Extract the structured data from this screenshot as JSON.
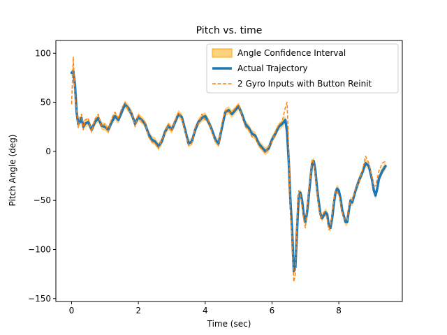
{
  "chart_data": {
    "type": "line",
    "title": "Pitch vs. time",
    "xlabel": "Time (sec)",
    "ylabel": "Pitch Angle (deg)",
    "xlim": [
      -0.47,
      9.9
    ],
    "ylim": [
      -153,
      113
    ],
    "xticks": [
      0,
      2,
      4,
      6,
      8
    ],
    "yticks": [
      -150,
      -100,
      -50,
      0,
      50,
      100
    ],
    "grid": false,
    "legend_position": "top-right",
    "series": [
      {
        "name": "Angle Confidence Interval",
        "kind": "band",
        "color": "#ffa500",
        "half_width": 4,
        "x": [
          0,
          0.05,
          0.1,
          0.15,
          0.2,
          0.25,
          0.3,
          0.35,
          0.4,
          0.5,
          0.6,
          0.7,
          0.8,
          0.9,
          1.0,
          1.1,
          1.2,
          1.3,
          1.4,
          1.5,
          1.6,
          1.7,
          1.8,
          1.9,
          2.0,
          2.1,
          2.2,
          2.3,
          2.4,
          2.5,
          2.6,
          2.7,
          2.8,
          2.9,
          3.0,
          3.1,
          3.2,
          3.3,
          3.4,
          3.5,
          3.6,
          3.7,
          3.8,
          3.9,
          4.0,
          4.1,
          4.2,
          4.3,
          4.4,
          4.5,
          4.6,
          4.7,
          4.8,
          4.9,
          5.0,
          5.1,
          5.2,
          5.3,
          5.4,
          5.5,
          5.6,
          5.7,
          5.8,
          5.9,
          6.0,
          6.1,
          6.2,
          6.3,
          6.4,
          6.45,
          6.5,
          6.55,
          6.6,
          6.65,
          6.7,
          6.75,
          6.8,
          6.85,
          6.9,
          6.95,
          7.0,
          7.05,
          7.1,
          7.15,
          7.2,
          7.25,
          7.3,
          7.35,
          7.4,
          7.45,
          7.5,
          7.55,
          7.6,
          7.65,
          7.7,
          7.75,
          7.8,
          7.85,
          7.9,
          7.95,
          8.0,
          8.05,
          8.1,
          8.15,
          8.2,
          8.25,
          8.3,
          8.35,
          8.4,
          8.5,
          8.6,
          8.7,
          8.8,
          8.9,
          9.0,
          9.05,
          9.1,
          9.15,
          9.2,
          9.3,
          9.4
        ],
        "y": [
          80,
          82,
          68,
          40,
          28,
          30,
          34,
          25,
          28,
          30,
          22,
          30,
          34,
          26,
          25,
          22,
          30,
          36,
          32,
          40,
          48,
          44,
          38,
          28,
          35,
          32,
          28,
          18,
          12,
          10,
          5,
          10,
          20,
          26,
          22,
          30,
          38,
          35,
          22,
          8,
          10,
          22,
          30,
          34,
          36,
          30,
          22,
          12,
          8,
          24,
          40,
          42,
          38,
          42,
          46,
          38,
          28,
          24,
          18,
          16,
          8,
          4,
          0,
          3,
          12,
          18,
          25,
          28,
          32,
          20,
          -10,
          -50,
          -80,
          -122,
          -118,
          -80,
          -45,
          -42,
          -50,
          -65,
          -72,
          -62,
          -45,
          -28,
          -12,
          -10,
          -20,
          -38,
          -52,
          -64,
          -68,
          -65,
          -62,
          -64,
          -76,
          -78,
          -68,
          -54,
          -42,
          -38,
          -40,
          -48,
          -60,
          -66,
          -72,
          -72,
          -60,
          -50,
          -52,
          -40,
          -30,
          -22,
          -12,
          -15,
          -30,
          -40,
          -45,
          -38,
          -28,
          -20,
          -15
        ]
      },
      {
        "name": "Actual Trajectory",
        "kind": "line",
        "color": "#1f77b4",
        "x": [
          0,
          0.05,
          0.1,
          0.15,
          0.2,
          0.25,
          0.3,
          0.35,
          0.4,
          0.5,
          0.6,
          0.7,
          0.8,
          0.9,
          1.0,
          1.1,
          1.2,
          1.3,
          1.4,
          1.5,
          1.6,
          1.7,
          1.8,
          1.9,
          2.0,
          2.1,
          2.2,
          2.3,
          2.4,
          2.5,
          2.6,
          2.7,
          2.8,
          2.9,
          3.0,
          3.1,
          3.2,
          3.3,
          3.4,
          3.5,
          3.6,
          3.7,
          3.8,
          3.9,
          4.0,
          4.1,
          4.2,
          4.3,
          4.4,
          4.5,
          4.6,
          4.7,
          4.8,
          4.9,
          5.0,
          5.1,
          5.2,
          5.3,
          5.4,
          5.5,
          5.6,
          5.7,
          5.8,
          5.9,
          6.0,
          6.1,
          6.2,
          6.3,
          6.4,
          6.45,
          6.5,
          6.55,
          6.6,
          6.65,
          6.7,
          6.75,
          6.8,
          6.85,
          6.9,
          6.95,
          7.0,
          7.05,
          7.1,
          7.15,
          7.2,
          7.25,
          7.3,
          7.35,
          7.4,
          7.45,
          7.5,
          7.55,
          7.6,
          7.65,
          7.7,
          7.75,
          7.8,
          7.85,
          7.9,
          7.95,
          8.0,
          8.05,
          8.1,
          8.15,
          8.2,
          8.25,
          8.3,
          8.35,
          8.4,
          8.5,
          8.6,
          8.7,
          8.8,
          8.9,
          9.0,
          9.05,
          9.1,
          9.15,
          9.2,
          9.3,
          9.4
        ],
        "y": [
          80,
          82,
          68,
          40,
          28,
          30,
          34,
          25,
          28,
          30,
          22,
          30,
          34,
          26,
          25,
          22,
          30,
          36,
          32,
          40,
          48,
          44,
          38,
          28,
          35,
          32,
          28,
          18,
          12,
          10,
          5,
          10,
          20,
          26,
          22,
          30,
          38,
          35,
          22,
          8,
          10,
          22,
          30,
          34,
          36,
          30,
          22,
          12,
          8,
          24,
          40,
          42,
          38,
          42,
          46,
          38,
          28,
          24,
          18,
          16,
          8,
          4,
          0,
          3,
          12,
          18,
          25,
          28,
          32,
          20,
          -10,
          -50,
          -80,
          -122,
          -118,
          -80,
          -45,
          -42,
          -50,
          -65,
          -72,
          -62,
          -45,
          -28,
          -12,
          -10,
          -20,
          -38,
          -52,
          -64,
          -68,
          -65,
          -62,
          -64,
          -76,
          -78,
          -68,
          -54,
          -42,
          -38,
          -40,
          -48,
          -60,
          -66,
          -72,
          -72,
          -60,
          -50,
          -52,
          -40,
          -30,
          -22,
          -12,
          -15,
          -30,
          -40,
          -45,
          -38,
          -28,
          -20,
          -15
        ]
      },
      {
        "name": "2 Gyro Inputs with Button Reinit",
        "kind": "dashed",
        "color": "#ff7f0e",
        "x": [
          0,
          0.05,
          0.1,
          0.15,
          0.2,
          0.25,
          0.3,
          0.35,
          0.4,
          0.5,
          0.6,
          0.7,
          0.8,
          0.9,
          1.0,
          1.1,
          1.2,
          1.3,
          1.4,
          1.5,
          1.6,
          1.7,
          1.8,
          1.9,
          2.0,
          2.1,
          2.2,
          2.3,
          2.4,
          2.5,
          2.6,
          2.7,
          2.8,
          2.9,
          3.0,
          3.1,
          3.2,
          3.3,
          3.4,
          3.5,
          3.6,
          3.7,
          3.8,
          3.9,
          4.0,
          4.1,
          4.2,
          4.3,
          4.4,
          4.5,
          4.6,
          4.7,
          4.8,
          4.9,
          5.0,
          5.1,
          5.2,
          5.3,
          5.4,
          5.5,
          5.6,
          5.7,
          5.8,
          5.9,
          6.0,
          6.1,
          6.2,
          6.3,
          6.4,
          6.45,
          6.5,
          6.55,
          6.6,
          6.65,
          6.7,
          6.75,
          6.8,
          6.85,
          6.9,
          6.95,
          7.0,
          7.05,
          7.1,
          7.15,
          7.2,
          7.25,
          7.3,
          7.35,
          7.4,
          7.45,
          7.5,
          7.55,
          7.6,
          7.65,
          7.7,
          7.75,
          7.8,
          7.85,
          7.9,
          7.95,
          8.0,
          8.05,
          8.1,
          8.15,
          8.2,
          8.25,
          8.3,
          8.35,
          8.4,
          8.5,
          8.6,
          8.7,
          8.8,
          8.9,
          9.0,
          9.05,
          9.1,
          9.15,
          9.2,
          9.3,
          9.4
        ],
        "y": [
          48,
          96,
          58,
          42,
          24,
          35,
          38,
          22,
          32,
          34,
          20,
          33,
          38,
          25,
          28,
          20,
          34,
          40,
          33,
          44,
          50,
          42,
          40,
          25,
          38,
          30,
          30,
          15,
          10,
          8,
          3,
          12,
          18,
          28,
          20,
          32,
          40,
          33,
          20,
          6,
          8,
          25,
          28,
          38,
          32,
          32,
          20,
          10,
          6,
          28,
          42,
          40,
          40,
          44,
          48,
          36,
          25,
          22,
          15,
          14,
          6,
          2,
          -2,
          5,
          10,
          20,
          27,
          30,
          45,
          50,
          0,
          -62,
          -90,
          -133,
          -125,
          -70,
          -40,
          -44,
          -56,
          -70,
          -78,
          -58,
          -40,
          -26,
          -8,
          -12,
          -25,
          -42,
          -56,
          -68,
          -66,
          -62,
          -64,
          -68,
          -80,
          -76,
          -64,
          -50,
          -40,
          -42,
          -44,
          -52,
          -62,
          -68,
          -70,
          -70,
          -57,
          -50,
          -50,
          -38,
          -32,
          -20,
          -5,
          -12,
          -28,
          -36,
          -35,
          -28,
          -20,
          -12,
          -10
        ]
      }
    ]
  }
}
